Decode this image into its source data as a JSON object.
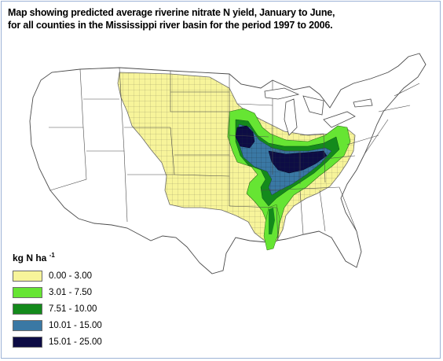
{
  "title": {
    "line1": "Map showing predicted average riverine nitrate N yield, January to June,",
    "line2": "for all counties in the Mississippi river basin for the period 1997 to 2006."
  },
  "legend": {
    "title_text": "kg N ha",
    "title_exp": "-1",
    "classes": [
      {
        "label": "0.00 - 3.00",
        "color": "#f7f49a"
      },
      {
        "label": "3.01 - 7.50",
        "color": "#66e533"
      },
      {
        "label": "7.51 - 10.00",
        "color": "#148a1c"
      },
      {
        "label": "10.01 - 15.00",
        "color": "#3a78a4"
      },
      {
        "label": "15.01 - 25.00",
        "color": "#0d0c45"
      }
    ]
  },
  "colors": {
    "outline": "#4a4a4a",
    "background": "#ffffff",
    "frame": "#9db3d6"
  }
}
